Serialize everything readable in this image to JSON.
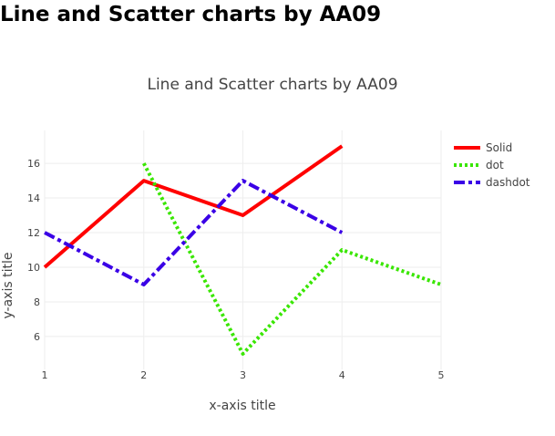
{
  "page": {
    "heading": "Line and Scatter charts by AA09"
  },
  "chart_data": {
    "type": "line",
    "title": "Line and Scatter charts by AA09",
    "xlabel": "x-axis title",
    "ylabel": "y-axis title",
    "xlim": [
      1,
      5
    ],
    "ylim": [
      4.1,
      17.9
    ],
    "xticks": [
      1,
      2,
      3,
      4,
      5
    ],
    "yticks": [
      6,
      8,
      10,
      12,
      14,
      16
    ],
    "grid": true,
    "legend_position": "top-right",
    "series": [
      {
        "name": "Solid",
        "x": [
          1,
          2,
          3,
          4
        ],
        "y": [
          10,
          15,
          13,
          17
        ],
        "color": "#ff0000",
        "dash": "solid"
      },
      {
        "name": "dot",
        "x": [
          2,
          3,
          4,
          5
        ],
        "y": [
          16,
          5,
          11,
          9
        ],
        "color": "#39e600",
        "dash": "dot"
      },
      {
        "name": "dashdot",
        "x": [
          1,
          2,
          3,
          4
        ],
        "y": [
          12,
          9,
          15,
          12
        ],
        "color": "#3a00e6",
        "dash": "dashdot"
      }
    ]
  }
}
